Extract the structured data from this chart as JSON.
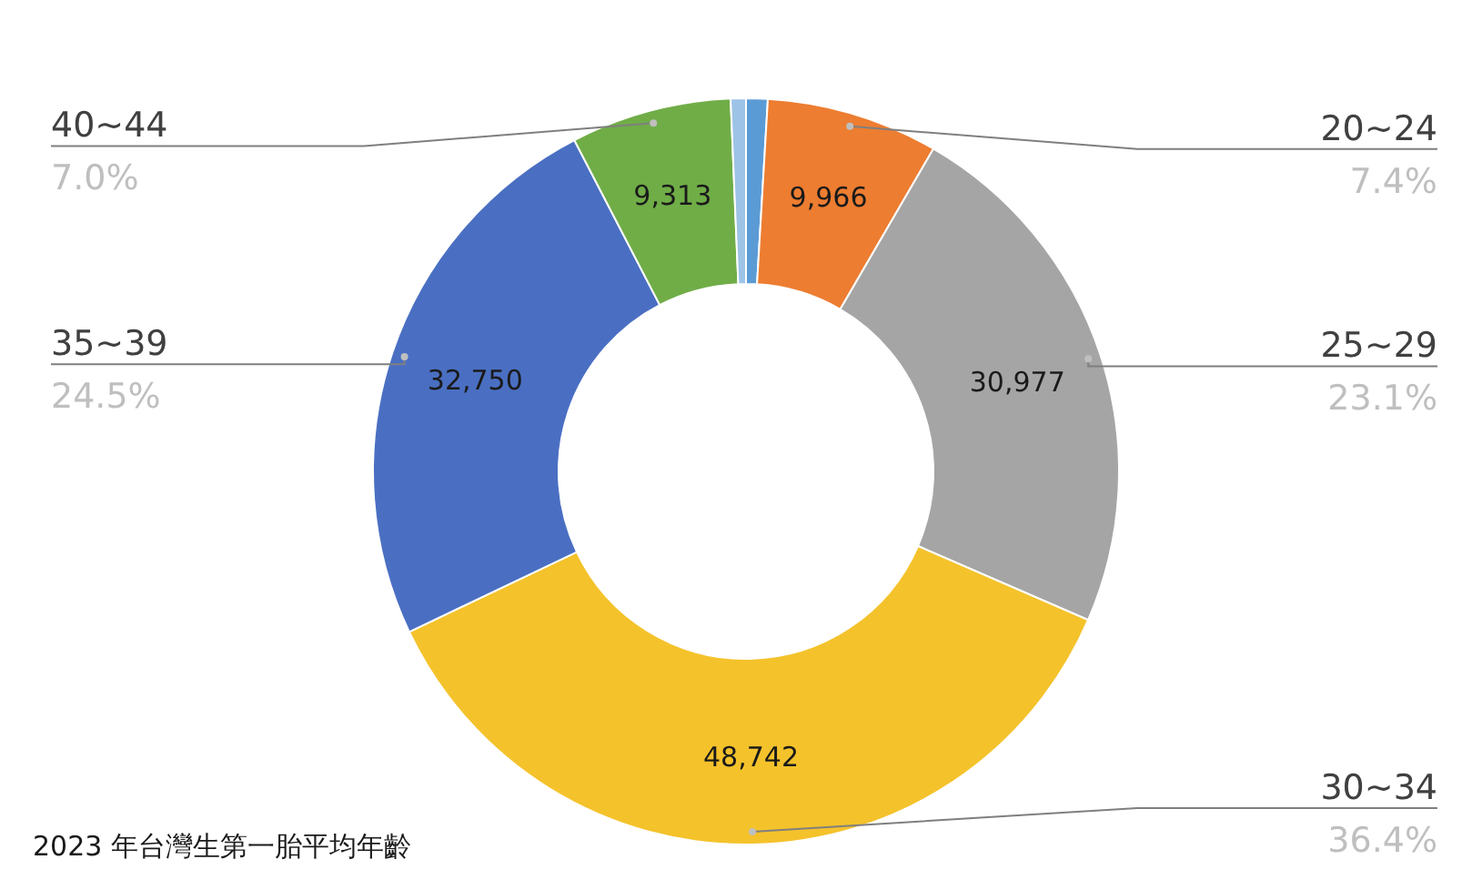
{
  "chart_data": {
    "type": "donut",
    "title": "2023 年台灣生第一胎平均年齡",
    "categories": [
      null,
      "20~24",
      "25~29",
      "30~34",
      "35~39",
      "40~44",
      null
    ],
    "values": [
      1250,
      9966,
      30977,
      48742,
      32750,
      9313,
      880
    ],
    "colors": [
      "#5b9bd5",
      "#ed7d31",
      "#a5a5a5",
      "#f4c22b",
      "#4a6fc2",
      "#70ad47",
      "#9dc3e6"
    ],
    "value_labels": [
      null,
      "9,966",
      "30,977",
      "48,742",
      "32,750",
      "9,313",
      null
    ],
    "annotations": [
      "7.4%",
      "23.1%",
      "36.4%",
      "24.5%",
      "7.0%"
    ]
  }
}
